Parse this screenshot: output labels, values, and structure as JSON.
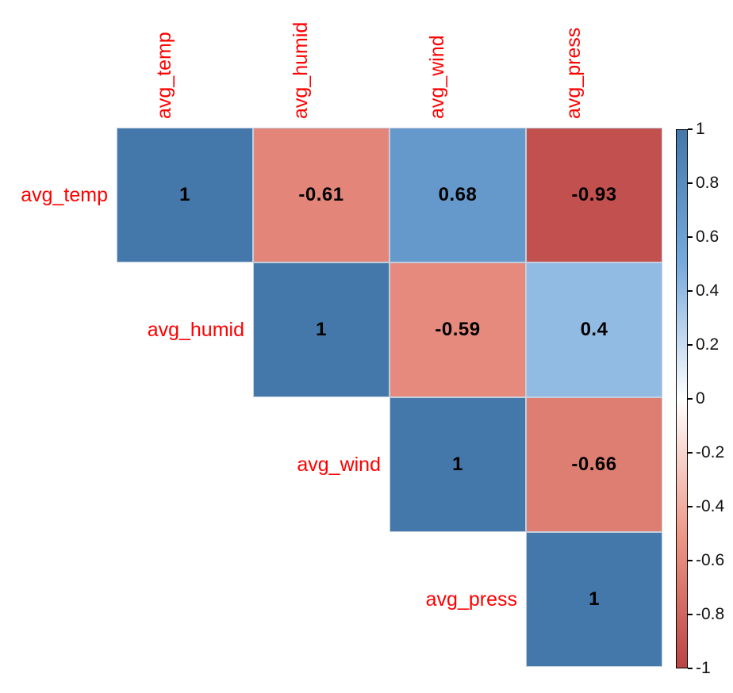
{
  "chart_data": {
    "type": "heatmap",
    "subtype": "correlation-matrix",
    "layout": "upper-triangle",
    "title": "",
    "variables": [
      "avg_temp",
      "avg_humid",
      "avg_wind",
      "avg_press"
    ],
    "matrix": [
      [
        1,
        -0.61,
        0.68,
        -0.93
      ],
      [
        null,
        1,
        -0.59,
        0.4
      ],
      [
        null,
        null,
        1,
        -0.66
      ],
      [
        null,
        null,
        null,
        1
      ]
    ],
    "cell_labels": [
      [
        "1",
        "-0.61",
        "0.68",
        "-0.93"
      ],
      [
        null,
        "1",
        "-0.59",
        "0.4"
      ],
      [
        null,
        null,
        "1",
        "-0.66"
      ],
      [
        null,
        null,
        null,
        "1"
      ]
    ],
    "value_range": [
      -1,
      1
    ],
    "colorbar": {
      "position": "right",
      "ticks": [
        1,
        0.8,
        0.6,
        0.4,
        0.2,
        0,
        -0.2,
        -0.4,
        -0.6,
        -0.8,
        -1
      ],
      "tick_labels": [
        "1",
        "0.8",
        "0.6",
        "0.4",
        "0.2",
        "0",
        "-0.2",
        "-0.4",
        "-0.6",
        "-0.8",
        "-1"
      ]
    },
    "palette_anchors": [
      {
        "value": -1,
        "color": "#BB4444"
      },
      {
        "value": -0.5,
        "color": "#EE9988"
      },
      {
        "value": 0,
        "color": "#FFFFFF"
      },
      {
        "value": 0.5,
        "color": "#77AADD"
      },
      {
        "value": 1,
        "color": "#4477AA"
      }
    ],
    "colors": {
      "axis_label": "#FF0000",
      "coefficient": "#000000",
      "colorbar_tick_label": "#111111",
      "grid": "#C4CFDD",
      "background": "#FFFFFF"
    }
  }
}
